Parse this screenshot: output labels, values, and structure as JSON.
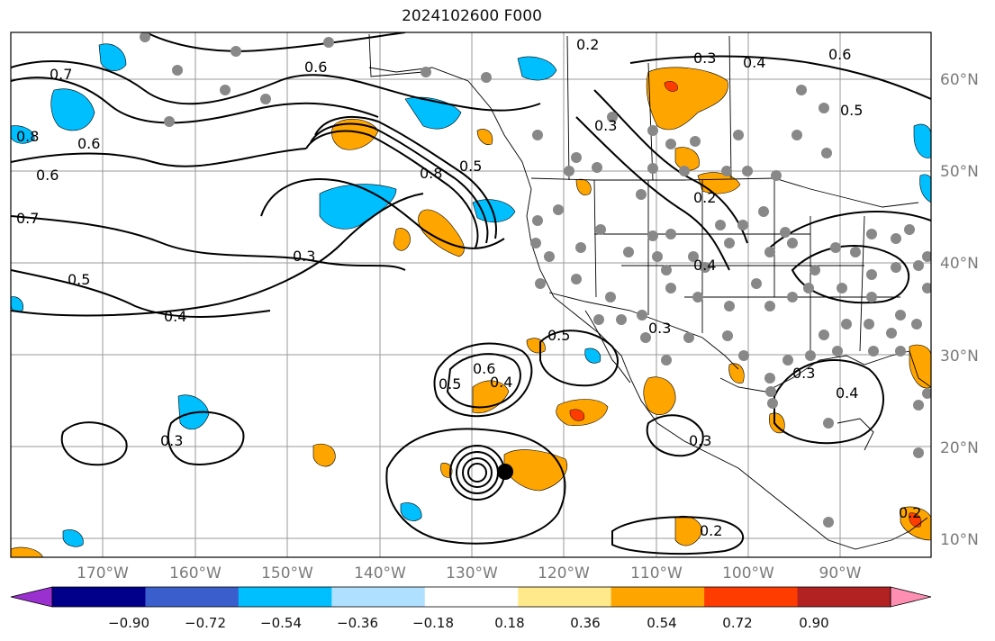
{
  "title": "2024102600 F000",
  "lon_labels": [
    "170°W",
    "160°W",
    "150°W",
    "140°W",
    "130°W",
    "120°W",
    "110°W",
    "100°W",
    "90°W"
  ],
  "lat_labels": [
    "60°N",
    "50°N",
    "40°N",
    "30°N",
    "20°N",
    "10°N"
  ],
  "contour_labels": [
    "0.2",
    "0.6",
    "0.3",
    "0.4",
    "0.6",
    "0.5",
    "0.5",
    "0.4",
    "0.7",
    "0.8",
    "0.6",
    "0.6",
    "0.7",
    "0.3",
    "0.5",
    "0.4",
    "0.2",
    "0.8",
    "0.3",
    "0.3",
    "0.5",
    "0.6",
    "0.4",
    "0.5",
    "0.2",
    "0.3",
    "0.3",
    "0.4",
    "0.3",
    "0.2"
  ],
  "colorbar": {
    "ticks": [
      "−0.90",
      "−0.72",
      "−0.54",
      "−0.36",
      "−0.18",
      "0.18",
      "0.36",
      "0.54",
      "0.72",
      "0.90"
    ],
    "colors": [
      "#9b30d0",
      "#00008b",
      "#3a5fcd",
      "#00bfff",
      "#b0e0ff",
      "#ffffff",
      "#ffe98a",
      "#ffa500",
      "#ff3c00",
      "#b22222",
      "#ff8fb2"
    ]
  },
  "fill_colors": {
    "orange": "#ffa500",
    "red": "#ff3c00",
    "blue": "#00bfff",
    "yellow": "#ffe98a",
    "lightblue": "#b0e0ff"
  }
}
